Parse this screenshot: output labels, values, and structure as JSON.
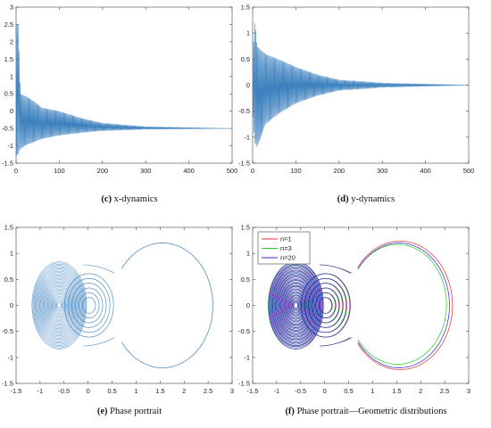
{
  "colors": {
    "blue": "#3a7fbd",
    "axis": "#444444",
    "n1": "#e03030",
    "n3": "#22cc22",
    "n20": "#2828d8"
  },
  "captions": {
    "c": {
      "label": "(c)",
      "text": "x-dynamics"
    },
    "d": {
      "label": "(d)",
      "text": "y-dynamics"
    },
    "e": {
      "label": "(e)",
      "text": "Phase portrait"
    },
    "f": {
      "label": "(f)",
      "text": "Phase portrait—Geometric distributions"
    }
  },
  "chart_data": [
    {
      "id": "c",
      "type": "line",
      "series": [
        {
          "values_description_only": false,
          "envelope_upper": [
            [
              0,
              2.55
            ],
            [
              5,
              2.5
            ],
            [
              10,
              0.5
            ],
            [
              20,
              0.45
            ],
            [
              40,
              0.3
            ],
            [
              60,
              0.1
            ],
            [
              100,
              0.0
            ],
            [
              150,
              -0.2
            ],
            [
              200,
              -0.35
            ],
            [
              300,
              -0.45
            ],
            [
              500,
              -0.5
            ]
          ],
          "envelope_lower": [
            [
              0,
              -1.3
            ],
            [
              5,
              -1.25
            ],
            [
              10,
              -1.1
            ],
            [
              20,
              -1.0
            ],
            [
              40,
              -0.9
            ],
            [
              60,
              -0.8
            ],
            [
              100,
              -0.7
            ],
            [
              150,
              -0.62
            ],
            [
              200,
              -0.56
            ],
            [
              300,
              -0.52
            ],
            [
              500,
              -0.5
            ]
          ]
        }
      ],
      "xlim": [
        0,
        500
      ],
      "ylim": [
        -1.5,
        3
      ],
      "xticks": [
        0,
        100,
        200,
        300,
        400,
        500
      ],
      "yticks": [
        -1.5,
        -1,
        -0.5,
        0,
        0.5,
        1,
        1.5,
        2,
        2.5,
        3
      ],
      "xtick_labels": [
        "0",
        "100",
        "200",
        "300",
        "400",
        "500"
      ],
      "ytick_labels": [
        "-1.5",
        "-1",
        "-0.5",
        "0",
        "0.5",
        "1",
        "1.5",
        "2",
        "2.5",
        "3"
      ],
      "grid": false
    },
    {
      "id": "d",
      "type": "line",
      "series": [
        {
          "envelope_upper": [
            [
              0,
              0.5
            ],
            [
              5,
              1.25
            ],
            [
              10,
              0.75
            ],
            [
              30,
              0.6
            ],
            [
              60,
              0.5
            ],
            [
              100,
              0.35
            ],
            [
              150,
              0.2
            ],
            [
              200,
              0.1
            ],
            [
              300,
              0.04
            ],
            [
              500,
              0.0
            ]
          ],
          "envelope_lower": [
            [
              0,
              -0.5
            ],
            [
              5,
              -1.1
            ],
            [
              10,
              -1.2
            ],
            [
              30,
              -0.75
            ],
            [
              60,
              -0.55
            ],
            [
              100,
              -0.35
            ],
            [
              150,
              -0.2
            ],
            [
              200,
              -0.1
            ],
            [
              300,
              -0.04
            ],
            [
              500,
              0.0
            ]
          ]
        }
      ],
      "xlim": [
        0,
        500
      ],
      "ylim": [
        -1.5,
        1.5
      ],
      "xticks": [
        0,
        100,
        200,
        300,
        400,
        500
      ],
      "yticks": [
        -1.5,
        -1,
        -0.5,
        0,
        0.5,
        1,
        1.5
      ],
      "xtick_labels": [
        "0",
        "100",
        "200",
        "300",
        "400",
        "500"
      ],
      "ytick_labels": [
        "-1.5",
        "-1",
        "-0.5",
        "0",
        "0.5",
        "1",
        "1.5"
      ],
      "grid": false
    },
    {
      "id": "e",
      "type": "line",
      "series": [
        {
          "outer_loop": {
            "center": [
              1.55,
              0
            ],
            "rx": 1.05,
            "ry": 1.2
          },
          "left_spiral_center": [
            -0.6,
            0
          ],
          "right_spiral_center": [
            0.0,
            0
          ]
        }
      ],
      "xlim": [
        -1.5,
        3
      ],
      "ylim": [
        -1.5,
        1.5
      ],
      "xticks": [
        -1.5,
        -1,
        -0.5,
        0,
        0.5,
        1,
        1.5,
        2,
        2.5,
        3
      ],
      "yticks": [
        -1.5,
        -1,
        -0.5,
        0,
        0.5,
        1,
        1.5
      ],
      "xtick_labels": [
        "-1.5",
        "-1",
        "-0.5",
        "0",
        "0.5",
        "1",
        "1.5",
        "2",
        "2.5",
        "3"
      ],
      "ytick_labels": [
        "-1.5",
        "-1",
        "-0.5",
        "0",
        "0.5",
        "1",
        "1.5"
      ],
      "grid": false
    },
    {
      "id": "f",
      "type": "line",
      "series": [
        {
          "name": "n=1",
          "color": "#e03030"
        },
        {
          "name": "n=3",
          "color": "#22cc22"
        },
        {
          "name": "n=20",
          "color": "#2828d8"
        }
      ],
      "legend": "top-left",
      "xlim": [
        -1.5,
        3
      ],
      "ylim": [
        -1.5,
        1.5
      ],
      "xticks": [
        -1.5,
        -1,
        -0.5,
        0,
        0.5,
        1,
        1.5,
        2,
        2.5,
        3
      ],
      "yticks": [
        -1.5,
        -1,
        -0.5,
        0,
        0.5,
        1,
        1.5
      ],
      "xtick_labels": [
        "-1.5",
        "-1",
        "-0.5",
        "0",
        "0.5",
        "1",
        "1.5",
        "2",
        "2.5",
        "3"
      ],
      "ytick_labels": [
        "-1.5",
        "-1",
        "-0.5",
        "0",
        "0.5",
        "1",
        "1.5"
      ],
      "grid": false
    }
  ]
}
